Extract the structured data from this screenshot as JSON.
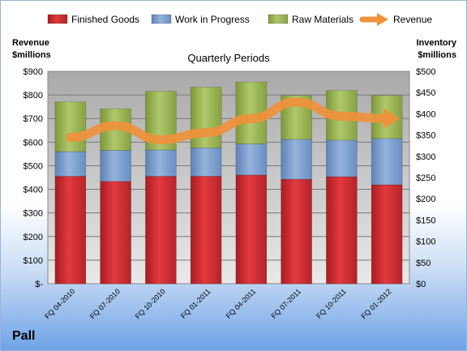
{
  "chart_data": {
    "type": "bar",
    "stacked": true,
    "title": "Quarterly Periods",
    "brand": "Pall",
    "y_left_label_line1": "Revenue",
    "y_left_label_line2": "$millions",
    "y_right_label_line1": "Inventory",
    "y_right_label_line2": "$millions",
    "y_left_ticks": [
      "$-",
      "$100",
      "$200",
      "$300",
      "$400",
      "$500",
      "$600",
      "$700",
      "$800",
      "$900"
    ],
    "y_right_ticks": [
      "$0",
      "$50",
      "$100",
      "$150",
      "$200",
      "$250",
      "$300",
      "$350",
      "$400",
      "$450",
      "$500"
    ],
    "ylim_left": [
      0,
      900
    ],
    "ylim_right": [
      0,
      500
    ],
    "grid": true,
    "legend_position": "top",
    "categories": [
      "FQ 04-2010",
      "FQ 07-2010",
      "FQ 10-2010",
      "FQ 01-2011",
      "FQ 04-2011",
      "FQ 07-2011",
      "FQ 10-2011",
      "FQ 01-2012"
    ],
    "series": [
      {
        "name": "Finished Goods",
        "axis": "right",
        "color": "#c0282e",
        "values": [
          253,
          241,
          253,
          253,
          256,
          246,
          252,
          233
        ]
      },
      {
        "name": "Work in Progress",
        "axis": "right",
        "color": "#6f93c6",
        "values": [
          58,
          73,
          62,
          67,
          73,
          94,
          86,
          109
        ]
      },
      {
        "name": "Raw Materials",
        "axis": "right",
        "color": "#8faa4a",
        "values": [
          117,
          98,
          138,
          143,
          146,
          103,
          117,
          101
        ]
      },
      {
        "name": "Revenue",
        "axis": "left",
        "type": "line",
        "color": "#f0913c",
        "values": [
          620,
          670,
          610,
          640,
          700,
          770,
          710,
          700
        ]
      }
    ]
  }
}
